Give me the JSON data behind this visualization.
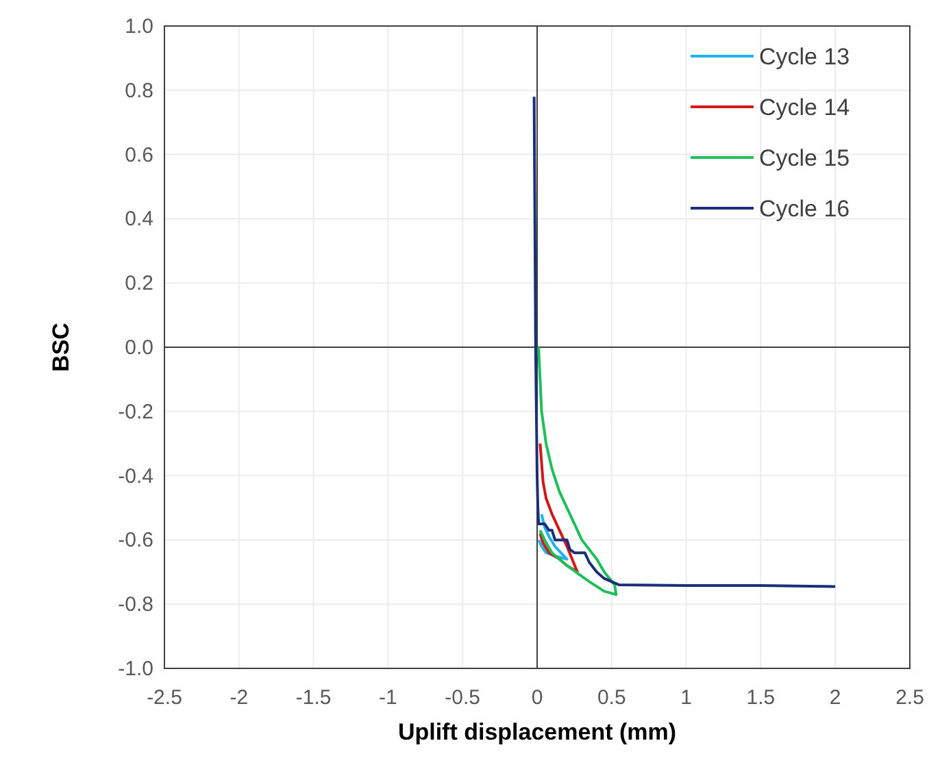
{
  "chart_data": {
    "type": "line",
    "xlabel": "Uplift displacement (mm)",
    "ylabel": "BSC",
    "xlim": [
      -2.5,
      2.5
    ],
    "xticks": [
      -2.5,
      -2,
      -1.5,
      -1,
      -0.5,
      0,
      0.5,
      1,
      1.5,
      2,
      2.5
    ],
    "ylim": [
      -1,
      1
    ],
    "yticks": [
      {
        "value": -1,
        "label": "-1.0"
      },
      -0.8,
      -0.6,
      -0.4,
      -0.2,
      {
        "value": 0,
        "label": "0.0"
      },
      0.2,
      0.4,
      0.6,
      0.8,
      {
        "value": 1,
        "label": "1.0"
      }
    ],
    "grid": true,
    "legend": "top right",
    "marker": "none",
    "line_style": "solid",
    "series": [
      {
        "name": "Cycle 13",
        "color": "#1eb4f0",
        "x": [
          0.03,
          0.05,
          0.08,
          0.12,
          0.18,
          0.2,
          0.12,
          0.06,
          0.03,
          0.01
        ],
        "values": [
          -0.52,
          -0.56,
          -0.59,
          -0.62,
          -0.65,
          -0.66,
          -0.65,
          -0.64,
          -0.62,
          -0.6
        ]
      },
      {
        "name": "Cycle 14",
        "color": "#d01818",
        "x": [
          0.02,
          0.04,
          0.06,
          0.1,
          0.15,
          0.2,
          0.27,
          0.2,
          0.15,
          0.08,
          0.04,
          0.02
        ],
        "values": [
          -0.3,
          -0.42,
          -0.47,
          -0.52,
          -0.57,
          -0.62,
          -0.7,
          -0.68,
          -0.66,
          -0.64,
          -0.61,
          -0.58
        ]
      },
      {
        "name": "Cycle 15",
        "color": "#1ebe5a",
        "x": [
          0.01,
          0.03,
          0.06,
          0.1,
          0.15,
          0.2,
          0.3,
          0.4,
          0.45,
          0.52,
          0.53,
          0.45,
          0.35,
          0.2,
          0.1,
          0.05,
          0.02
        ],
        "values": [
          0,
          -0.2,
          -0.3,
          -0.38,
          -0.45,
          -0.5,
          -0.6,
          -0.66,
          -0.7,
          -0.74,
          -0.77,
          -0.76,
          -0.73,
          -0.68,
          -0.64,
          -0.6,
          -0.57
        ]
      },
      {
        "name": "Cycle 16",
        "color": "#1a2f78",
        "x": [
          -0.02,
          -0.01,
          0,
          0.005,
          0.01,
          0.05,
          0.08,
          0.1,
          0.12,
          0.2,
          0.22,
          0.25,
          0.32,
          0.35,
          0.4,
          0.45,
          0.5,
          0.55,
          1,
          1.5,
          2
        ],
        "values": [
          0.78,
          0,
          -0.4,
          -0.5,
          -0.55,
          -0.55,
          -0.57,
          -0.57,
          -0.6,
          -0.6,
          -0.63,
          -0.64,
          -0.64,
          -0.67,
          -0.7,
          -0.72,
          -0.73,
          -0.74,
          -0.742,
          -0.742,
          -0.745
        ]
      }
    ]
  }
}
